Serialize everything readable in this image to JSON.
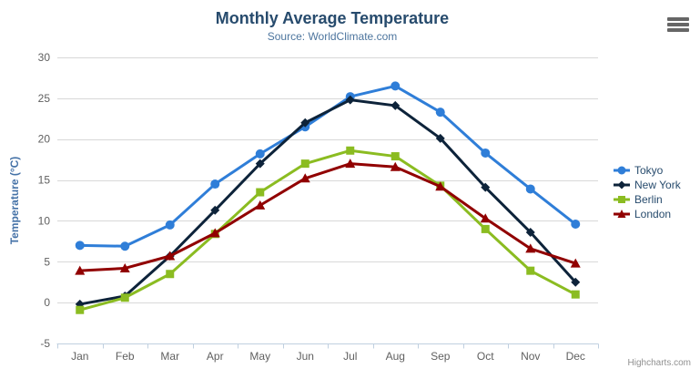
{
  "chart_data": {
    "type": "line",
    "title": "Monthly Average Temperature",
    "subtitle": "Source: WorldClimate.com",
    "xlabel": "",
    "ylabel": "Temperature (°C)",
    "categories": [
      "Jan",
      "Feb",
      "Mar",
      "Apr",
      "May",
      "Jun",
      "Jul",
      "Aug",
      "Sep",
      "Oct",
      "Nov",
      "Dec"
    ],
    "ylim": [
      -5,
      30
    ],
    "yticks": [
      -5,
      0,
      5,
      10,
      15,
      20,
      25,
      30
    ],
    "grid": true,
    "legend_position": "right",
    "series": [
      {
        "name": "Tokyo",
        "color": "#2f7ed8",
        "marker": "circle",
        "values": [
          7.0,
          6.9,
          9.5,
          14.5,
          18.2,
          21.5,
          25.2,
          26.5,
          23.3,
          18.3,
          13.9,
          9.6
        ]
      },
      {
        "name": "New York",
        "color": "#0d233a",
        "marker": "diamond",
        "values": [
          -0.2,
          0.8,
          5.7,
          11.3,
          17.0,
          22.0,
          24.8,
          24.1,
          20.1,
          14.1,
          8.6,
          2.5
        ]
      },
      {
        "name": "Berlin",
        "color": "#8bbc21",
        "marker": "square",
        "values": [
          -0.9,
          0.6,
          3.5,
          8.4,
          13.5,
          17.0,
          18.6,
          17.9,
          14.3,
          9.0,
          3.9,
          1.0
        ]
      },
      {
        "name": "London",
        "color": "#910000",
        "marker": "triangle",
        "values": [
          3.9,
          4.2,
          5.7,
          8.5,
          11.9,
          15.2,
          17.0,
          16.6,
          14.2,
          10.3,
          6.6,
          4.8
        ]
      }
    ],
    "colors": {
      "title": "#274b6d",
      "subtitle": "#4d759e",
      "axis_label": "#606060",
      "axis_title": "#4572a7",
      "gridline": "#d8d8d8",
      "axis_line": "#c0d0e0"
    },
    "credit": "Highcharts.com"
  }
}
